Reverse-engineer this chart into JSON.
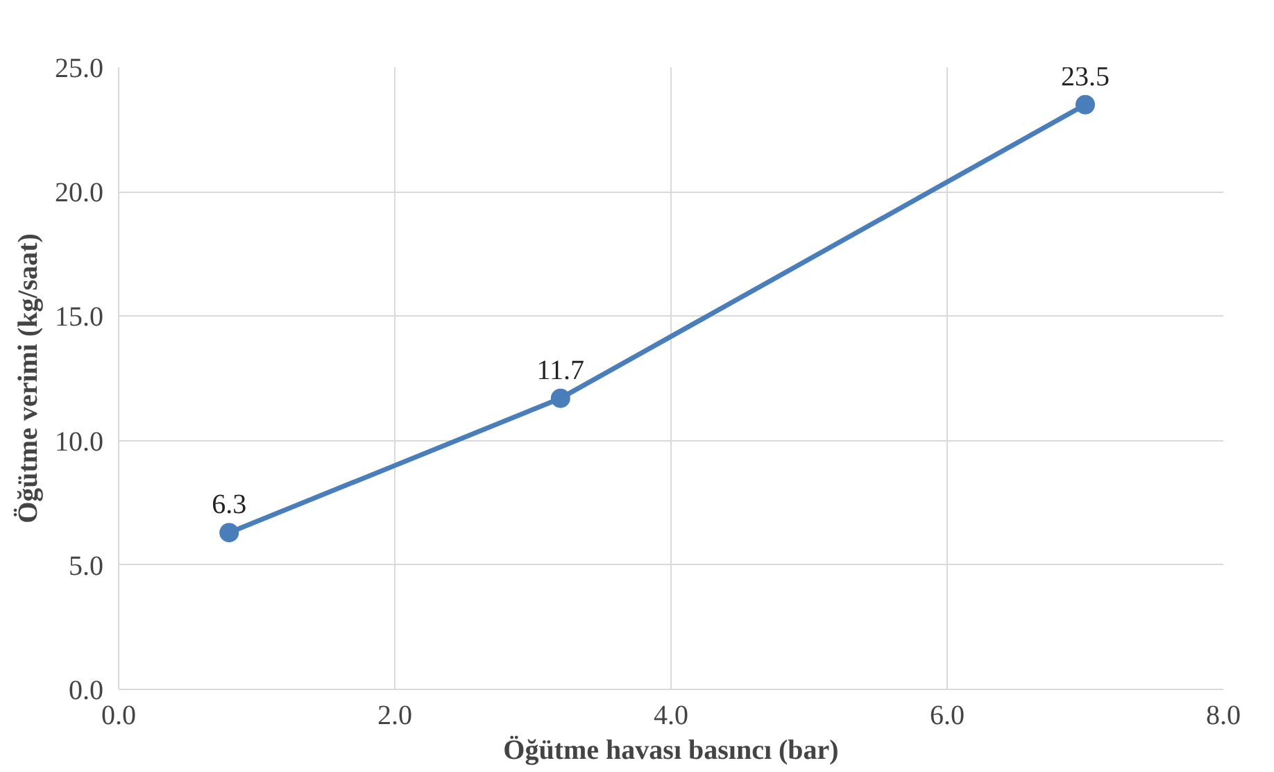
{
  "chart_data": {
    "type": "line",
    "xlabel": "Öğütme havası basıncı (bar)",
    "ylabel": "Öğütme verimi (kg/saat)",
    "x": [
      0.8,
      3.2,
      7.0
    ],
    "series": [
      {
        "color": "#4a7ebb",
        "values": [
          6.3,
          11.7,
          23.5
        ]
      }
    ],
    "xlim": [
      0,
      8
    ],
    "xticks": [
      {
        "value": 0,
        "label": "0.0"
      },
      {
        "value": 2,
        "label": "2.0"
      },
      {
        "value": 4,
        "label": "4.0"
      },
      {
        "value": 6,
        "label": "6.0"
      },
      {
        "value": 8,
        "label": "8.0"
      }
    ],
    "ylim": [
      0,
      25
    ],
    "yticks": [
      {
        "value": 0,
        "label": "0.0"
      },
      {
        "value": 5,
        "label": "5.0"
      },
      {
        "value": 10,
        "label": "10.0"
      },
      {
        "value": 15,
        "label": "15.0"
      },
      {
        "value": 20,
        "label": "20.0"
      },
      {
        "value": 25,
        "label": "25.0"
      }
    ],
    "grid": true,
    "marker": "circle",
    "line_style": "solid",
    "data_labels": true
  }
}
